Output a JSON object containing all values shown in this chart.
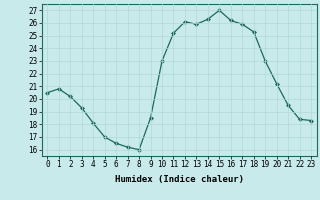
{
  "x": [
    0,
    1,
    2,
    3,
    4,
    5,
    6,
    7,
    8,
    9,
    10,
    11,
    12,
    13,
    14,
    15,
    16,
    17,
    18,
    19,
    20,
    21,
    22,
    23
  ],
  "y": [
    20.5,
    20.8,
    20.2,
    19.3,
    18.1,
    17.0,
    16.5,
    16.2,
    16.0,
    18.5,
    23.0,
    25.2,
    26.1,
    25.9,
    26.3,
    27.0,
    26.2,
    25.9,
    25.3,
    23.0,
    21.2,
    19.5,
    18.4,
    18.3
  ],
  "xlabel": "Humidex (Indice chaleur)",
  "xlim": [
    -0.5,
    23.5
  ],
  "ylim": [
    15.5,
    27.5
  ],
  "yticks": [
    16,
    17,
    18,
    19,
    20,
    21,
    22,
    23,
    24,
    25,
    26,
    27
  ],
  "xticks": [
    0,
    1,
    2,
    3,
    4,
    5,
    6,
    7,
    8,
    9,
    10,
    11,
    12,
    13,
    14,
    15,
    16,
    17,
    18,
    19,
    20,
    21,
    22,
    23
  ],
  "line_color": "#1a6b5a",
  "marker_color": "#1a6b5a",
  "bg_color": "#c8eaea",
  "grid_color": "#b0d8d8",
  "label_fontsize": 6.5,
  "tick_fontsize": 5.5
}
